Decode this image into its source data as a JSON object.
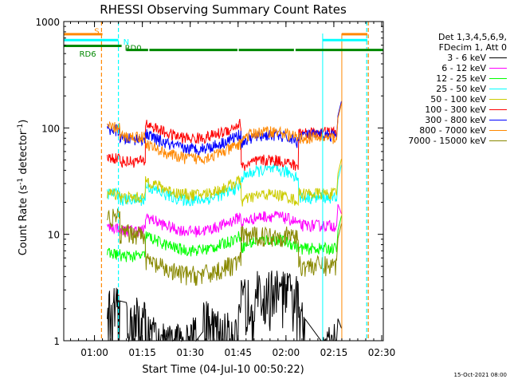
{
  "chart_data": {
    "type": "line",
    "title": "RHESSI Observing Summary Count Rates",
    "xlabel": "Start Time (04-Jul-10 00:50:22)",
    "ylabel_main": "Count Rate (s",
    "ylabel_sup": "-1",
    "ylabel_rest": " detector",
    "ylabel_tail": ")",
    "xlim": [
      50.37,
      150.5
    ],
    "ylim": [
      1,
      1000
    ],
    "yscale": "log",
    "x_ticks": [
      {
        "value": 60,
        "label": "01:00"
      },
      {
        "value": 75,
        "label": "01:15"
      },
      {
        "value": 90,
        "label": "01:30"
      },
      {
        "value": 105,
        "label": "01:45"
      },
      {
        "value": 120,
        "label": "02:00"
      },
      {
        "value": 135,
        "label": "02:15"
      },
      {
        "value": 150,
        "label": "02:30"
      }
    ],
    "y_ticks": [
      {
        "value": 1,
        "label": "1"
      },
      {
        "value": 10,
        "label": "10"
      },
      {
        "value": 100,
        "label": "100"
      },
      {
        "value": 1000,
        "label": "1000"
      }
    ],
    "legend_header": [
      "Det 1,3,4,5,6,9,",
      "FDecim 1, Att 0"
    ],
    "legend_position": "right",
    "series": [
      {
        "name": "3 - 6 keV",
        "color": "#000000",
        "base": 2.8,
        "floor": 1.1,
        "segments": [
          [
            64,
            68,
            2.0
          ],
          [
            70,
            76,
            1.6
          ],
          [
            76,
            92,
            1.0
          ],
          [
            94,
            106,
            1.3
          ],
          [
            106,
            124,
            2.5
          ],
          [
            124,
            126,
            1.5
          ],
          [
            131,
            136,
            1.0
          ]
        ]
      },
      {
        "name": "6 - 12 keV",
        "color": "#ff00ff",
        "segments": [
          [
            64,
            68,
            11.5
          ],
          [
            68,
            76,
            10.8
          ],
          [
            76,
            106,
            11.8
          ],
          [
            106,
            124,
            12.5
          ],
          [
            124,
            136,
            12.0
          ]
        ]
      },
      {
        "name": "12 - 25 keV",
        "color": "#00ff00",
        "segments": [
          [
            64,
            68,
            6.5
          ],
          [
            68,
            76,
            6.2
          ],
          [
            76,
            106,
            7.8
          ],
          [
            106,
            124,
            7.5
          ],
          [
            124,
            136,
            7.3
          ]
        ]
      },
      {
        "name": "25 - 50 keV",
        "color": "#00ffff",
        "segments": [
          [
            64,
            68,
            24
          ],
          [
            68,
            76,
            21
          ],
          [
            76,
            106,
            23
          ],
          [
            106,
            124,
            34
          ],
          [
            124,
            136,
            22
          ]
        ]
      },
      {
        "name": "50 - 100 keV",
        "color": "#cccc00",
        "segments": [
          [
            64,
            68,
            24
          ],
          [
            68,
            76,
            22
          ],
          [
            76,
            106,
            26
          ],
          [
            106,
            124,
            20
          ],
          [
            124,
            136,
            24
          ]
        ]
      },
      {
        "name": "100 - 300 keV",
        "color": "#ff0000",
        "segments": [
          [
            64,
            68,
            52
          ],
          [
            68,
            76,
            48
          ],
          [
            76,
            106,
            88
          ],
          [
            106,
            124,
            42
          ],
          [
            124,
            136,
            90
          ]
        ]
      },
      {
        "name": "300 - 800 keV",
        "color": "#0000ff",
        "segments": [
          [
            64,
            68,
            95
          ],
          [
            68,
            76,
            78
          ],
          [
            76,
            106,
            70
          ],
          [
            106,
            124,
            72
          ],
          [
            124,
            136,
            85
          ]
        ]
      },
      {
        "name": "800 - 7000 keV",
        "color": "#ff8800",
        "segments": [
          [
            64,
            68,
            100
          ],
          [
            68,
            76,
            82
          ],
          [
            76,
            106,
            57
          ],
          [
            106,
            124,
            78
          ],
          [
            124,
            136,
            80
          ]
        ]
      },
      {
        "name": "7000 - 15000 keV",
        "color": "#888800",
        "segments": [
          [
            64,
            68,
            14
          ],
          [
            68,
            76,
            10
          ],
          [
            76,
            106,
            4.5
          ],
          [
            106,
            124,
            9.5
          ],
          [
            124,
            136,
            5.0
          ]
        ]
      }
    ],
    "attenuator_bars": [
      {
        "label": "S",
        "color": "#ff8800",
        "level": 760,
        "x_ranges": [
          [
            50.4,
            62.5
          ],
          [
            137.5,
            145.5
          ]
        ]
      },
      {
        "label": "N",
        "color": "#00ffff",
        "level": 670,
        "x_ranges": [
          [
            50.4,
            67.5
          ],
          [
            131.5,
            145.5
          ]
        ]
      },
      {
        "label": "RD0",
        "color": "#008800",
        "level": 540,
        "x_ranges": [
          [
            70,
            76.8
          ],
          [
            77.2,
            104.8
          ],
          [
            105.2,
            122.5
          ],
          [
            123,
            150.5
          ]
        ]
      },
      {
        "label": "RD6",
        "color": "#008800",
        "level": 590,
        "x_ranges": [
          [
            50.4,
            68.5
          ]
        ]
      }
    ],
    "vertical_markers": [
      {
        "x": 62.2,
        "color": "#ff8800"
      },
      {
        "x": 67.5,
        "color": "#00ffff"
      },
      {
        "x": 145.3,
        "color": "#00ffff"
      },
      {
        "x": 145.8,
        "color": "#ff8800"
      }
    ]
  },
  "footer": "15-Oct-2021 08:00"
}
